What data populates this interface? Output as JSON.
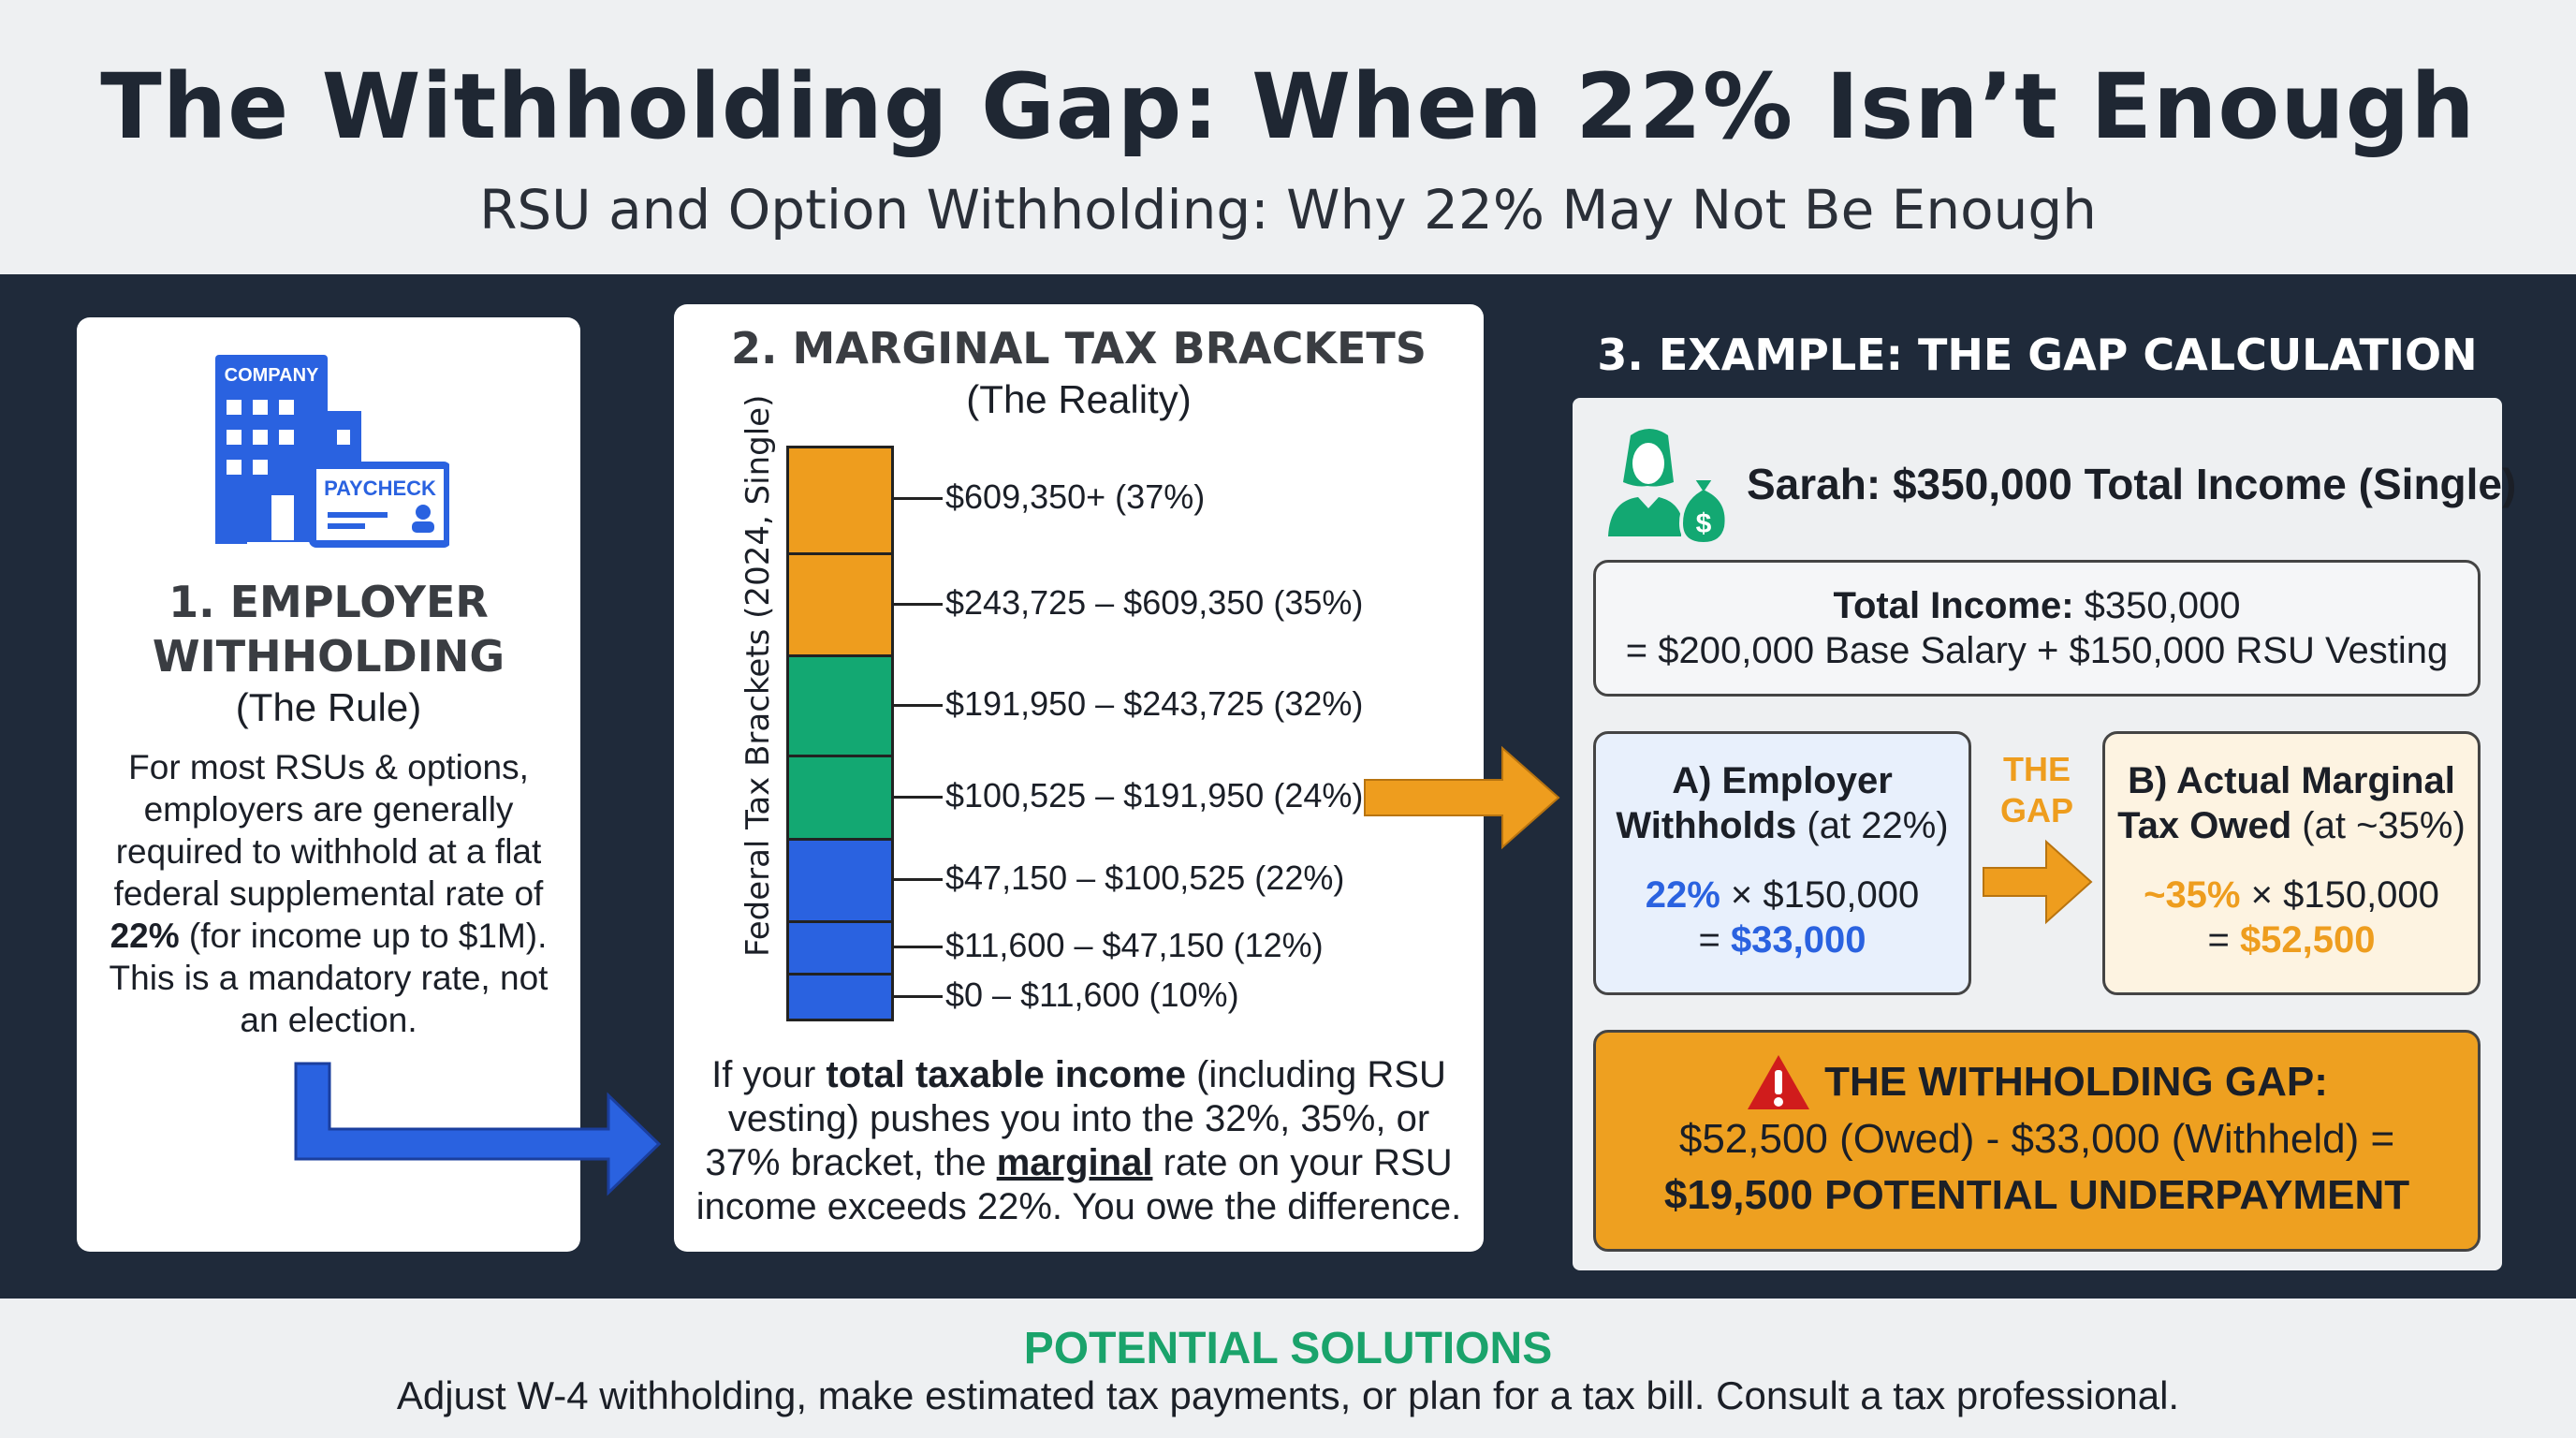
{
  "header": {
    "title": "The Withholding Gap: When 22% Isn’t Enough",
    "subtitle": "RSU and Option Withholding: Why 22% May Not Be Enough"
  },
  "card1": {
    "icon_company": "COMPANY",
    "icon_paycheck": "PAYCHECK",
    "heading_1": "1. EMPLOYER",
    "heading_2": "WITHHOLDING",
    "sub": "(The Rule)",
    "body_a": "For most RSUs & options, employers are generally required to withhold at a flat federal supplemental rate of ",
    "body_bold": "22%",
    "body_b": " (for income up to $1M). This is a mandatory rate, not an election."
  },
  "card2": {
    "heading": "2. MARGINAL TAX BRACKETS",
    "sub": "(The Reality)",
    "axis_label": "Federal Tax Brackets (2024, Single)",
    "brackets": [
      {
        "label": "$609,350+ (37%)",
        "color": "#ee9d1e"
      },
      {
        "label": "$243,725 – $609,350 (35%)",
        "color": "#ee9d1e"
      },
      {
        "label": "$191,950 – $243,725 (32%)",
        "color": "#13a872"
      },
      {
        "label": "$100,525 – $191,950 (24%)",
        "color": "#13a872"
      },
      {
        "label": "$47,150 – $100,525 (22%)",
        "color": "#2a62e0"
      },
      {
        "label": "$11,600 – $47,150 (12%)",
        "color": "#2a62e0"
      },
      {
        "label": "$0 – $11,600 (10%)",
        "color": "#2a62e0"
      }
    ],
    "p1": "If your ",
    "p2": "total taxable income",
    "p3": " (including RSU vesting) pushes you into the 32%, 35%, or 37% bracket, the ",
    "p4": "marginal",
    "p5": " rate on your RSU income exceeds 22%. You owe the difference."
  },
  "section3": {
    "heading": "3. EXAMPLE: THE GAP CALCULATION",
    "person": "Sarah: $350,000 Total Income (Single)",
    "total_label": "Total Income:",
    "total_value": " $350,000",
    "total_line2": "= $200,000 Base Salary + $150,000 RSU Vesting",
    "a_title1": "A) Employer",
    "a_title2b": "Withholds",
    "a_title2": " (at 22%)",
    "a_rate": "22%",
    "a_mult": " × $150,000",
    "a_eq": "= ",
    "a_result": "$33,000",
    "gap_1": "THE",
    "gap_2": "GAP",
    "b_title1": "B) Actual Marginal",
    "b_title2b": "Tax Owed",
    "b_title2": " (at ~35%)",
    "b_rate": "~35%",
    "b_mult": " × $150,000",
    "b_eq": "= ",
    "b_result": "$52,500",
    "gap_heading": "THE WITHHOLDING GAP:",
    "gap_calc": "$52,500 (Owed) - $33,000 (Withheld) =",
    "gap_result": "$19,500 POTENTIAL UNDERPAYMENT"
  },
  "footer": {
    "heading": "POTENTIAL SOLUTIONS",
    "text": "Adjust W-4 withholding, make estimated tax payments, or plan for a tax bill. Consult a tax professional."
  },
  "colors": {
    "blue": "#2a62e0",
    "orange": "#ee9d1e",
    "green": "#13a872",
    "dark": "#1f2a3a",
    "red": "#d01c1c"
  }
}
